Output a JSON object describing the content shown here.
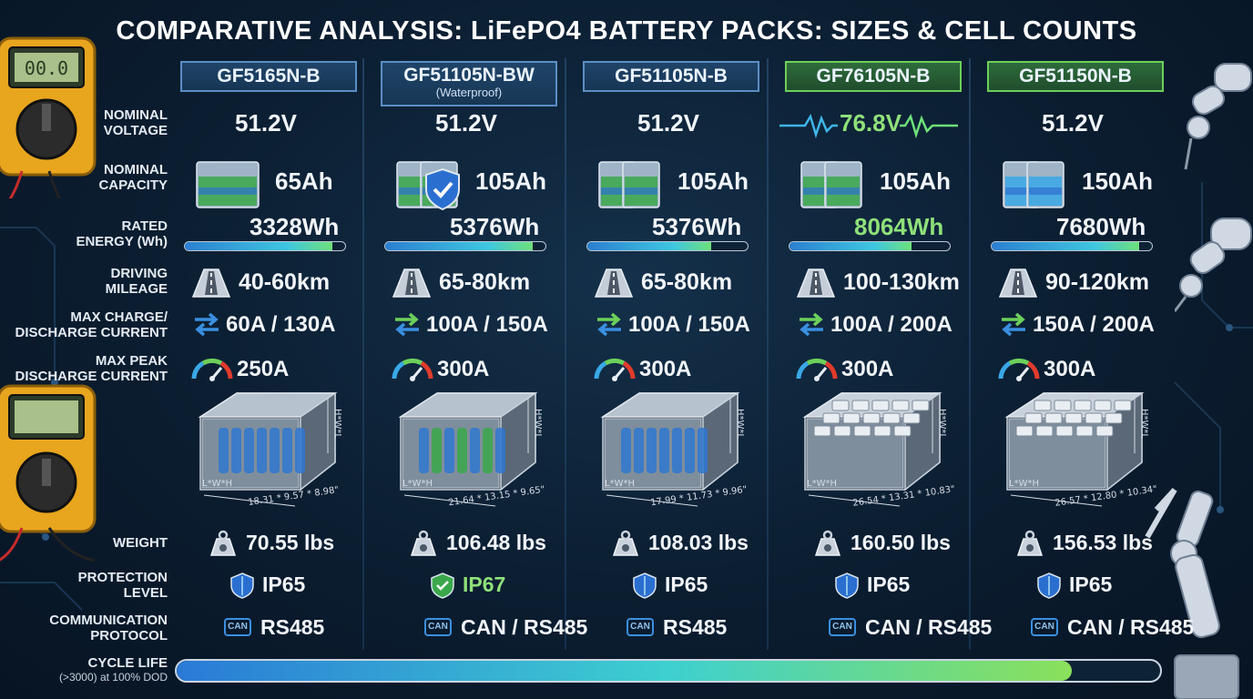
{
  "title": "COMPARATIVE ANALYSIS: LiFePO4 BATTERY PACKS: SIZES & CELL COUNTS",
  "row_labels": {
    "voltage": [
      "NOMINAL",
      "VOLTAGE"
    ],
    "capacity": [
      "NOMINAL",
      "CAPACITY"
    ],
    "energy": [
      "RATED",
      "ENERGY (Wh)"
    ],
    "mileage": [
      "DRIVING",
      "MILEAGE"
    ],
    "current": [
      "MAX CHARGE/",
      "DISCHARGE CURRENT"
    ],
    "peak": [
      "MAX PEAK",
      "DISCHARGE CURRENT"
    ],
    "weight": "WEIGHT",
    "protection": [
      "PROTECTION",
      "LEVEL"
    ],
    "communication": [
      "COMMUNICATION",
      "PROTOCOL"
    ],
    "cycle": [
      "CYCLE LIFE",
      "(>3000) at 100% DOD"
    ]
  },
  "icon_text": {
    "can": "CAN",
    "height_label": "H*W*L"
  },
  "products": [
    {
      "model": "GF5165N-B",
      "sub": "",
      "voltage": "51.2V",
      "capacity": "65Ah",
      "energy": "3328Wh",
      "energy_fill": 0.92,
      "mileage": "40-60km",
      "current": "60A / 130A",
      "peak": "250A",
      "dims": "18.31 * 9.57 * 8.98\"",
      "dims_short": "L*W*H",
      "weight": "70.55 lbs",
      "protection": "IP65",
      "comm": "RS485",
      "highlight": false
    },
    {
      "model": "GF51105N-BW",
      "sub": "(Waterproof)",
      "voltage": "51.2V",
      "capacity": "105Ah",
      "energy": "5376Wh",
      "energy_fill": 0.92,
      "mileage": "65-80km",
      "current": "100A / 150A",
      "peak": "300A",
      "dims": "21.64 * 13.15 * 9.65\"",
      "dims_short": "L*W*H",
      "weight": "106.48 lbs",
      "protection": "IP67",
      "comm": "CAN / RS485",
      "highlight": false
    },
    {
      "model": "GF51105N-B",
      "sub": "",
      "voltage": "51.2V",
      "capacity": "105Ah",
      "energy": "5376Wh",
      "energy_fill": 0.77,
      "mileage": "65-80km",
      "current": "100A / 150A",
      "peak": "300A",
      "dims": "17.99 * 11.73 * 9.96\"",
      "dims_short": "L*W*H",
      "weight": "108.03 lbs",
      "protection": "IP65",
      "comm": "RS485",
      "highlight": false
    },
    {
      "model": "GF76105N-B",
      "sub": "",
      "voltage": "76.8V",
      "capacity": "105Ah",
      "energy": "8064Wh",
      "energy_fill": 0.76,
      "mileage": "100-130km",
      "current": "100A / 200A",
      "peak": "300A",
      "dims": "26.54 * 13.31 * 10.83\"",
      "dims_short": "L*W*H",
      "weight": "160.50 lbs",
      "protection": "IP65",
      "comm": "CAN / RS485",
      "highlight": true
    },
    {
      "model": "GF51150N-B",
      "sub": "",
      "voltage": "51.2V",
      "capacity": "150Ah",
      "energy": "7680Wh",
      "energy_fill": 0.92,
      "mileage": "90-120km",
      "current": "150A / 200A",
      "peak": "300A",
      "dims": "26.57 * 12.80 * 10.34\"",
      "dims_short": "L*W*H",
      "weight": "156.53 lbs",
      "protection": "IP65",
      "comm": "CAN / RS485",
      "highlight": true
    }
  ],
  "cycle_fill": 0.91,
  "colors": {
    "accent_blue": "#3a8fe0",
    "accent_green": "#6cd05a",
    "panel_border": "#5b8fc4"
  }
}
